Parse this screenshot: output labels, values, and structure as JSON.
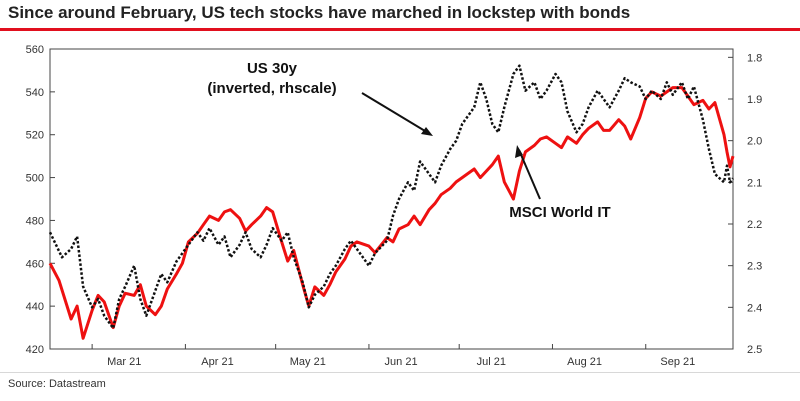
{
  "title": "Since around February, US tech stocks have marched in lockstep with bonds",
  "source": "Source: Datastream",
  "colors": {
    "accent": "#e10f1e",
    "msci": "#ee1111",
    "us30y": "#111111"
  },
  "chart_data": {
    "type": "line",
    "x_tick_labels": [
      "Mar 21",
      "Apr 21",
      "May 21",
      "Jun 21",
      "Jul 21",
      "Aug 21",
      "Sep 21"
    ],
    "x_start": "2021-02-15",
    "x_end": "2021-09-30",
    "y_left": {
      "ticks": [
        420,
        440,
        460,
        480,
        500,
        520,
        540,
        560
      ],
      "tick_labels": [
        "420",
        "440",
        "460",
        "480",
        "500",
        "520",
        "540",
        "560"
      ],
      "ylim": [
        420,
        560
      ]
    },
    "y_right": {
      "inverted": true,
      "ticks": [
        1.8,
        1.9,
        2.0,
        2.1,
        2.2,
        2.3,
        2.4,
        2.5
      ],
      "tick_labels": [
        "1.8",
        "1.9",
        "2.0",
        "2.1",
        "2.2",
        "2.3",
        "2.4",
        "2.5"
      ],
      "ylim": [
        1.78,
        2.5
      ]
    },
    "annotations": {
      "us30y": [
        "US 30y",
        "(inverted, rhscale)"
      ],
      "msci": "MSCI World IT"
    },
    "series": [
      {
        "name": "MSCI World IT",
        "axis": "left",
        "color": "#ee1111",
        "points": [
          [
            "2021-02-15",
            460
          ],
          [
            "2021-02-18",
            452
          ],
          [
            "2021-02-22",
            434
          ],
          [
            "2021-02-24",
            440
          ],
          [
            "2021-02-26",
            425
          ],
          [
            "2021-03-01",
            438
          ],
          [
            "2021-03-03",
            445
          ],
          [
            "2021-03-05",
            442
          ],
          [
            "2021-03-08",
            430
          ],
          [
            "2021-03-10",
            440
          ],
          [
            "2021-03-12",
            446
          ],
          [
            "2021-03-15",
            445
          ],
          [
            "2021-03-17",
            450
          ],
          [
            "2021-03-19",
            440
          ],
          [
            "2021-03-22",
            436
          ],
          [
            "2021-03-24",
            440
          ],
          [
            "2021-03-26",
            448
          ],
          [
            "2021-03-29",
            455
          ],
          [
            "2021-03-31",
            460
          ],
          [
            "2021-04-02",
            470
          ],
          [
            "2021-04-05",
            474
          ],
          [
            "2021-04-07",
            478
          ],
          [
            "2021-04-09",
            482
          ],
          [
            "2021-04-12",
            480
          ],
          [
            "2021-04-14",
            484
          ],
          [
            "2021-04-16",
            485
          ],
          [
            "2021-04-19",
            481
          ],
          [
            "2021-04-21",
            475
          ],
          [
            "2021-04-23",
            478
          ],
          [
            "2021-04-26",
            482
          ],
          [
            "2021-04-28",
            486
          ],
          [
            "2021-04-30",
            484
          ],
          [
            "2021-05-03",
            470
          ],
          [
            "2021-05-05",
            461
          ],
          [
            "2021-05-07",
            466
          ],
          [
            "2021-05-10",
            450
          ],
          [
            "2021-05-12",
            440
          ],
          [
            "2021-05-14",
            449
          ],
          [
            "2021-05-17",
            445
          ],
          [
            "2021-05-19",
            450
          ],
          [
            "2021-05-21",
            456
          ],
          [
            "2021-05-24",
            462
          ],
          [
            "2021-05-26",
            468
          ],
          [
            "2021-05-28",
            470
          ],
          [
            "2021-06-01",
            468
          ],
          [
            "2021-06-03",
            465
          ],
          [
            "2021-06-07",
            472
          ],
          [
            "2021-06-09",
            470
          ],
          [
            "2021-06-11",
            476
          ],
          [
            "2021-06-14",
            478
          ],
          [
            "2021-06-16",
            482
          ],
          [
            "2021-06-18",
            478
          ],
          [
            "2021-06-21",
            485
          ],
          [
            "2021-06-23",
            488
          ],
          [
            "2021-06-25",
            492
          ],
          [
            "2021-06-28",
            495
          ],
          [
            "2021-06-30",
            498
          ],
          [
            "2021-07-02",
            500
          ],
          [
            "2021-07-06",
            504
          ],
          [
            "2021-07-08",
            500
          ],
          [
            "2021-07-12",
            506
          ],
          [
            "2021-07-14",
            510
          ],
          [
            "2021-07-16",
            498
          ],
          [
            "2021-07-19",
            490
          ],
          [
            "2021-07-21",
            503
          ],
          [
            "2021-07-23",
            512
          ],
          [
            "2021-07-26",
            515
          ],
          [
            "2021-07-28",
            518
          ],
          [
            "2021-07-30",
            519
          ],
          [
            "2021-08-02",
            516
          ],
          [
            "2021-08-04",
            514
          ],
          [
            "2021-08-06",
            519
          ],
          [
            "2021-08-09",
            516
          ],
          [
            "2021-08-11",
            520
          ],
          [
            "2021-08-13",
            523
          ],
          [
            "2021-08-16",
            526
          ],
          [
            "2021-08-18",
            522
          ],
          [
            "2021-08-20",
            522
          ],
          [
            "2021-08-23",
            527
          ],
          [
            "2021-08-25",
            524
          ],
          [
            "2021-08-27",
            518
          ],
          [
            "2021-08-30",
            528
          ],
          [
            "2021-09-01",
            537
          ],
          [
            "2021-09-03",
            540
          ],
          [
            "2021-09-06",
            538
          ],
          [
            "2021-09-08",
            540
          ],
          [
            "2021-09-10",
            542
          ],
          [
            "2021-09-13",
            542
          ],
          [
            "2021-09-15",
            538
          ],
          [
            "2021-09-17",
            534
          ],
          [
            "2021-09-20",
            536
          ],
          [
            "2021-09-22",
            532
          ],
          [
            "2021-09-24",
            535
          ],
          [
            "2021-09-27",
            520
          ],
          [
            "2021-09-28",
            512
          ],
          [
            "2021-09-29",
            505
          ],
          [
            "2021-09-30",
            510
          ]
        ]
      },
      {
        "name": "US 30y",
        "axis": "right",
        "color": "#111111",
        "points": [
          [
            "2021-02-15",
            2.22
          ],
          [
            "2021-02-17",
            2.25
          ],
          [
            "2021-02-19",
            2.28
          ],
          [
            "2021-02-22",
            2.26
          ],
          [
            "2021-02-24",
            2.23
          ],
          [
            "2021-02-26",
            2.35
          ],
          [
            "2021-03-01",
            2.4
          ],
          [
            "2021-03-03",
            2.38
          ],
          [
            "2021-03-05",
            2.42
          ],
          [
            "2021-03-08",
            2.45
          ],
          [
            "2021-03-10",
            2.38
          ],
          [
            "2021-03-12",
            2.35
          ],
          [
            "2021-03-15",
            2.3
          ],
          [
            "2021-03-17",
            2.38
          ],
          [
            "2021-03-19",
            2.42
          ],
          [
            "2021-03-22",
            2.36
          ],
          [
            "2021-03-24",
            2.32
          ],
          [
            "2021-03-26",
            2.34
          ],
          [
            "2021-03-29",
            2.29
          ],
          [
            "2021-03-31",
            2.27
          ],
          [
            "2021-04-02",
            2.25
          ],
          [
            "2021-04-05",
            2.22
          ],
          [
            "2021-04-07",
            2.24
          ],
          [
            "2021-04-09",
            2.21
          ],
          [
            "2021-04-12",
            2.25
          ],
          [
            "2021-04-14",
            2.23
          ],
          [
            "2021-04-16",
            2.28
          ],
          [
            "2021-04-19",
            2.25
          ],
          [
            "2021-04-21",
            2.22
          ],
          [
            "2021-04-23",
            2.26
          ],
          [
            "2021-04-26",
            2.28
          ],
          [
            "2021-04-28",
            2.25
          ],
          [
            "2021-04-30",
            2.21
          ],
          [
            "2021-05-03",
            2.24
          ],
          [
            "2021-05-05",
            2.22
          ],
          [
            "2021-05-07",
            2.28
          ],
          [
            "2021-05-10",
            2.34
          ],
          [
            "2021-05-12",
            2.4
          ],
          [
            "2021-05-14",
            2.37
          ],
          [
            "2021-05-17",
            2.35
          ],
          [
            "2021-05-19",
            2.32
          ],
          [
            "2021-05-21",
            2.3
          ],
          [
            "2021-05-24",
            2.26
          ],
          [
            "2021-05-26",
            2.24
          ],
          [
            "2021-05-28",
            2.26
          ],
          [
            "2021-06-01",
            2.3
          ],
          [
            "2021-06-03",
            2.27
          ],
          [
            "2021-06-07",
            2.24
          ],
          [
            "2021-06-09",
            2.18
          ],
          [
            "2021-06-11",
            2.14
          ],
          [
            "2021-06-14",
            2.1
          ],
          [
            "2021-06-16",
            2.12
          ],
          [
            "2021-06-18",
            2.05
          ],
          [
            "2021-06-21",
            2.08
          ],
          [
            "2021-06-23",
            2.1
          ],
          [
            "2021-06-25",
            2.06
          ],
          [
            "2021-06-28",
            2.02
          ],
          [
            "2021-06-30",
            2.0
          ],
          [
            "2021-07-02",
            1.96
          ],
          [
            "2021-07-06",
            1.92
          ],
          [
            "2021-07-08",
            1.86
          ],
          [
            "2021-07-10",
            1.9
          ],
          [
            "2021-07-12",
            1.96
          ],
          [
            "2021-07-14",
            1.98
          ],
          [
            "2021-07-16",
            1.92
          ],
          [
            "2021-07-19",
            1.84
          ],
          [
            "2021-07-21",
            1.82
          ],
          [
            "2021-07-23",
            1.88
          ],
          [
            "2021-07-26",
            1.86
          ],
          [
            "2021-07-28",
            1.9
          ],
          [
            "2021-07-30",
            1.88
          ],
          [
            "2021-08-02",
            1.84
          ],
          [
            "2021-08-04",
            1.86
          ],
          [
            "2021-08-06",
            1.93
          ],
          [
            "2021-08-09",
            1.98
          ],
          [
            "2021-08-11",
            1.96
          ],
          [
            "2021-08-13",
            1.92
          ],
          [
            "2021-08-16",
            1.88
          ],
          [
            "2021-08-18",
            1.9
          ],
          [
            "2021-08-20",
            1.92
          ],
          [
            "2021-08-23",
            1.88
          ],
          [
            "2021-08-25",
            1.85
          ],
          [
            "2021-08-27",
            1.86
          ],
          [
            "2021-08-30",
            1.87
          ],
          [
            "2021-09-01",
            1.9
          ],
          [
            "2021-09-03",
            1.88
          ],
          [
            "2021-09-06",
            1.9
          ],
          [
            "2021-09-08",
            1.86
          ],
          [
            "2021-09-10",
            1.89
          ],
          [
            "2021-09-13",
            1.86
          ],
          [
            "2021-09-15",
            1.9
          ],
          [
            "2021-09-17",
            1.87
          ],
          [
            "2021-09-20",
            1.95
          ],
          [
            "2021-09-22",
            2.02
          ],
          [
            "2021-09-24",
            2.08
          ],
          [
            "2021-09-27",
            2.1
          ],
          [
            "2021-09-28",
            2.06
          ],
          [
            "2021-09-29",
            2.1
          ],
          [
            "2021-09-30",
            2.09
          ]
        ]
      }
    ]
  }
}
